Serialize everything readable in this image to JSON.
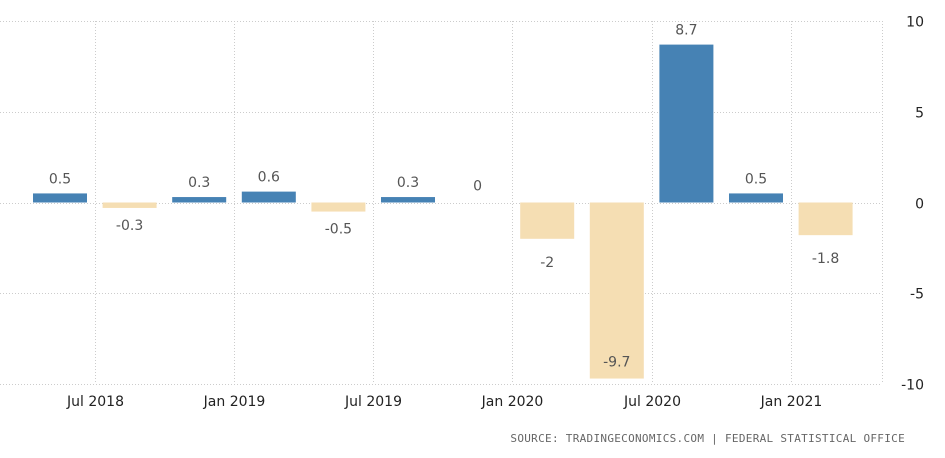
{
  "chart_data": {
    "type": "bar",
    "categories": [
      "2018-Q2",
      "2018-Q3",
      "2018-Q4",
      "2019-Q1",
      "2019-Q2",
      "2019-Q3",
      "2019-Q4",
      "2020-Q1",
      "2020-Q2",
      "2020-Q3",
      "2020-Q4",
      "2021-Q1"
    ],
    "values": [
      0.5,
      -0.3,
      0.3,
      0.6,
      -0.5,
      0.3,
      0,
      -2,
      -9.7,
      8.7,
      0.5,
      -1.8
    ],
    "data_labels": [
      "0.5",
      "-0.3",
      "0.3",
      "0.6",
      "-0.5",
      "0.3",
      "0",
      "-2",
      "-9.7",
      "8.7",
      "0.5",
      "-1.8"
    ],
    "x_tick_labels": [
      "Jul 2018",
      "Jan 2019",
      "Jul 2019",
      "Jan 2020",
      "Jul 2020",
      "Jan 2021"
    ],
    "y_ticks": [
      10,
      5,
      0,
      -5,
      -10
    ],
    "y_tick_labels": [
      "10",
      "5",
      "0",
      "-5",
      "-10"
    ],
    "ylim": [
      -10,
      10
    ],
    "y_axis_side": "right",
    "grid": true,
    "colors": {
      "positive": "#4682b4",
      "negative": "#f5deb3",
      "grid": "#cccccc",
      "label": "#555555"
    },
    "title": "",
    "xlabel": "",
    "ylabel": ""
  },
  "source_text": "SOURCE: TRADINGECONOMICS.COM | FEDERAL STATISTICAL OFFICE"
}
